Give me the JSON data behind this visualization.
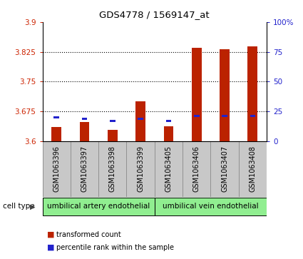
{
  "title": "GDS4778 / 1569147_at",
  "samples": [
    "GSM1063396",
    "GSM1063397",
    "GSM1063398",
    "GSM1063399",
    "GSM1063405",
    "GSM1063406",
    "GSM1063407",
    "GSM1063408"
  ],
  "red_values": [
    3.635,
    3.648,
    3.628,
    3.7,
    3.638,
    3.835,
    3.832,
    3.838
  ],
  "blue_values_pct": [
    20,
    19,
    17,
    19,
    17,
    21,
    21,
    21
  ],
  "ylim_left": [
    3.6,
    3.9
  ],
  "ylim_right": [
    0,
    100
  ],
  "yticks_left": [
    3.6,
    3.675,
    3.75,
    3.825,
    3.9
  ],
  "ytick_labels_left": [
    "3.6",
    "3.675",
    "3.75",
    "3.825",
    "3.9"
  ],
  "yticks_right": [
    0,
    25,
    50,
    75,
    100
  ],
  "ytick_labels_right": [
    "0",
    "25",
    "50",
    "75",
    "100%"
  ],
  "dotted_lines": [
    3.675,
    3.75,
    3.825
  ],
  "groups": [
    {
      "label": "umbilical artery endothelial",
      "indices": [
        0,
        1,
        2,
        3
      ],
      "color": "#90EE90"
    },
    {
      "label": "umbilical vein endothelial",
      "indices": [
        4,
        5,
        6,
        7
      ],
      "color": "#90EE90"
    }
  ],
  "cell_type_label": "cell type",
  "legend_red_label": "transformed count",
  "legend_blue_label": "percentile rank within the sample",
  "bar_width": 0.35,
  "bar_color_red": "#BB2200",
  "bar_color_blue": "#2222CC",
  "bg_color": "#FFFFFF",
  "tick_color_left": "#CC2200",
  "tick_color_right": "#2222CC",
  "cell_bg": "#C8C8C8",
  "sep_color": "#888888"
}
